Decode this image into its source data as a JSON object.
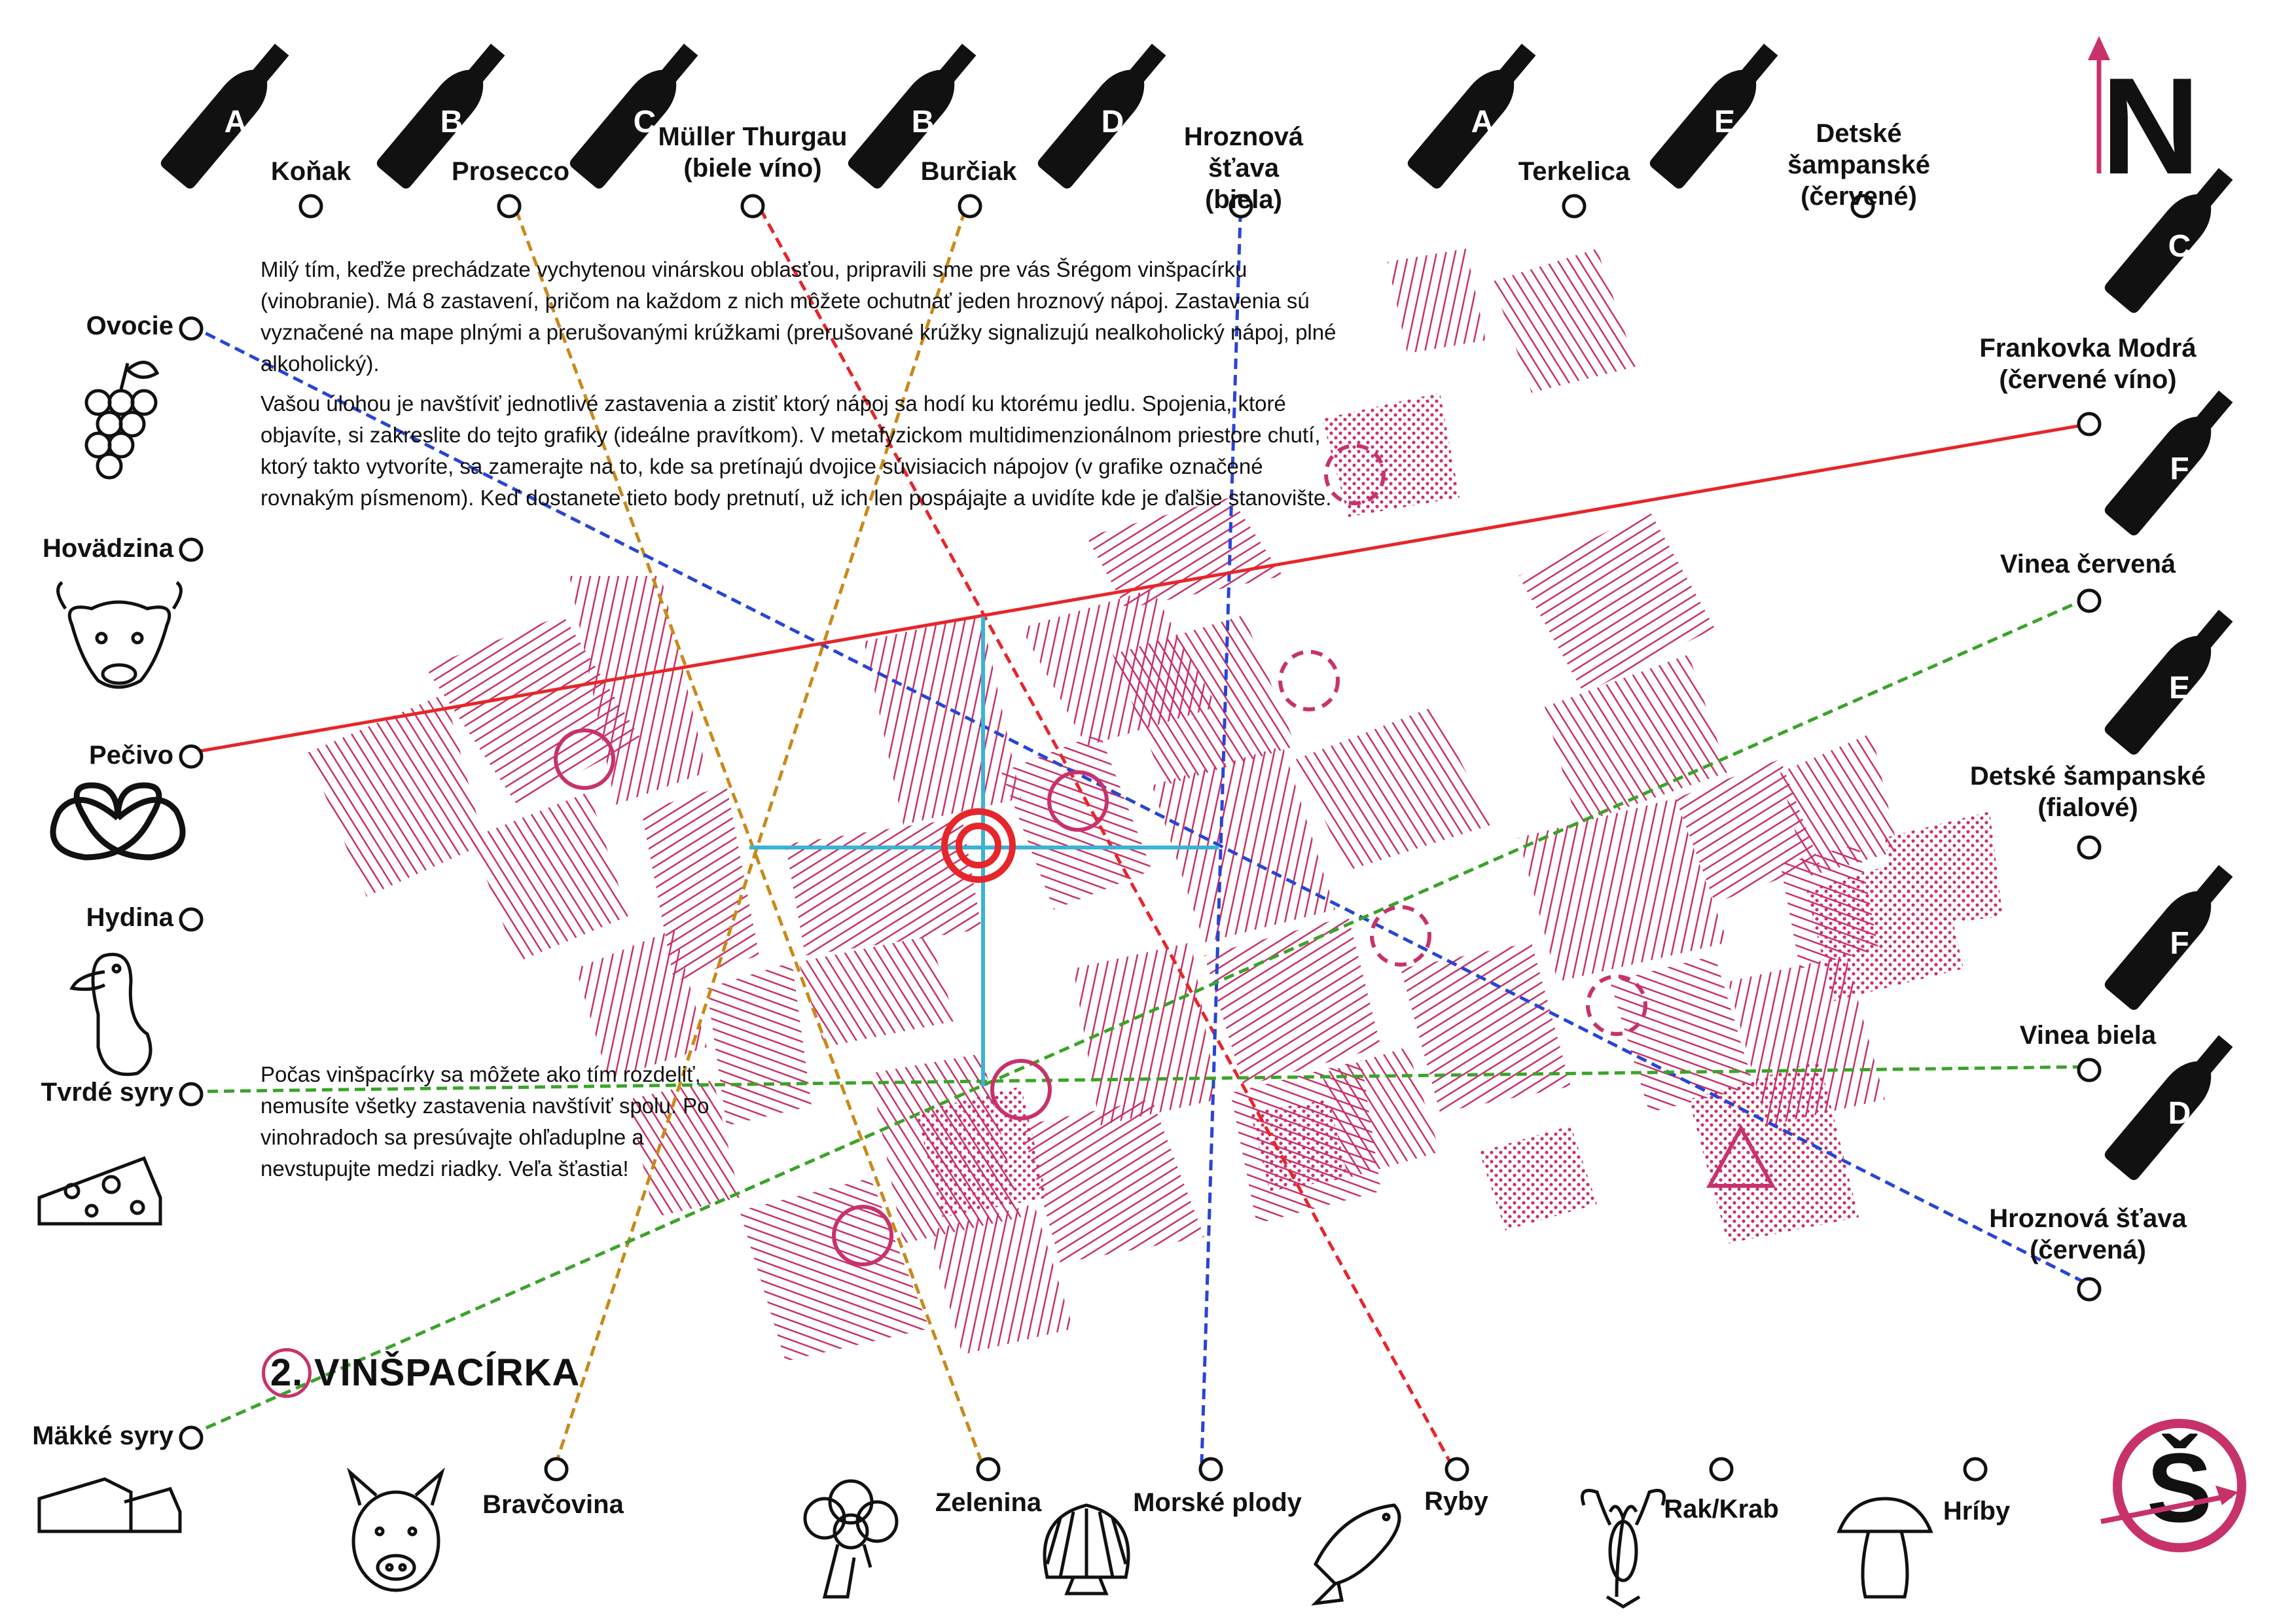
{
  "wines_top": [
    {
      "letter": "A",
      "name": "Koňak"
    },
    {
      "letter": "B",
      "name": "Prosecco"
    },
    {
      "letter": "C",
      "name": "Müller Thurgau\n(biele víno)"
    },
    {
      "letter": "B",
      "name": "Burčiak"
    },
    {
      "letter": "D",
      "name": "Hroznová šťava\n(biela)"
    },
    {
      "letter": "A",
      "name": "Terkelica"
    },
    {
      "letter": "E",
      "name": "Detské šampanské\n(červené)"
    }
  ],
  "wines_right": [
    {
      "letter": "C",
      "name": "Frankovka Modrá\n(červené víno)"
    },
    {
      "letter": "F",
      "name": "Vinea červená"
    },
    {
      "letter": "E",
      "name": "Detské šampanské\n(fialové)"
    },
    {
      "letter": "F",
      "name": "Vinea biela"
    },
    {
      "letter": "D",
      "name": "Hroznová šťava\n(červená)"
    }
  ],
  "foods_left": [
    {
      "name": "Ovocie",
      "icon": "grapes-icon"
    },
    {
      "name": "Hovädzina",
      "icon": "bull-icon"
    },
    {
      "name": "Pečivo",
      "icon": "pretzel-icon"
    },
    {
      "name": "Hydina",
      "icon": "duck-icon"
    },
    {
      "name": "Tvrdé syry",
      "icon": "hard-cheese-icon"
    },
    {
      "name": "Mäkké syry",
      "icon": "soft-cheese-icon"
    }
  ],
  "foods_bottom": [
    {
      "name": "Bravčovina",
      "icon": "pig-icon"
    },
    {
      "name": "Zelenina",
      "icon": "broccoli-icon"
    },
    {
      "name": "Morské plody",
      "icon": "shell-icon"
    },
    {
      "name": "Ryby",
      "icon": "fish-icon"
    },
    {
      "name": "Rak/Krab",
      "icon": "lobster-icon"
    },
    {
      "name": "Hríby",
      "icon": "mushroom-icon"
    }
  ],
  "intro_paragraphs": [
    "Milý tím, keďže prechádzate vychytenou vinárskou oblasťou, pripravili sme pre vás Šrégom vinšpacírku (vinobranie). Má 8 zastavení, pričom na každom z nich môžete ochutnať jeden hroznový nápoj. Zastavenia sú vyznačené na mape plnými a prerušovanými krúžkami (prerušované krúžky signalizujú nealkoholický nápoj, plné alkoholický).",
    "Vašou úlohou je navštíviť jednotlivé zastavenia a zistiť ktorý nápoj sa hodí ku ktorému jedlu. Spojenia, ktoré objavíte, si zakreslite do tejto grafiky (ideálne pravítkom). V metafyzickom multidimenzionálnom priestore chutí, ktorý takto vytvoríte, sa zamerajte na to, kde sa pretínajú dvojice súvisiacich nápojov (v grafike označené rovnakým písmenom). Keď dostanete tieto body pretnutí, už ich len pospájajte a uvidíte kde je ďalšie stanovište."
  ],
  "note": "Počas vinšpacírky sa môžete ako tím rozdeliť, nemusíte všetky zastavenia navštíviť spolu. Po vinohradoch sa presúvajte ohľaduplne a nevstupujte medzi riadky. Veľa šťastia!",
  "title": {
    "number": "2.",
    "text": "VINŠPACÍRKA"
  },
  "compass": {
    "letter": "N"
  },
  "logo": {
    "letter": "Š"
  },
  "colors": {
    "vineyard": "#c8326b",
    "line_red": "#e6262a",
    "line_blue": "#2745d6",
    "line_green": "#3aa32a",
    "line_orange": "#c98a1a",
    "solution_cross": "#3bb3d8",
    "target": "#e6262a",
    "ink": "#111111"
  }
}
